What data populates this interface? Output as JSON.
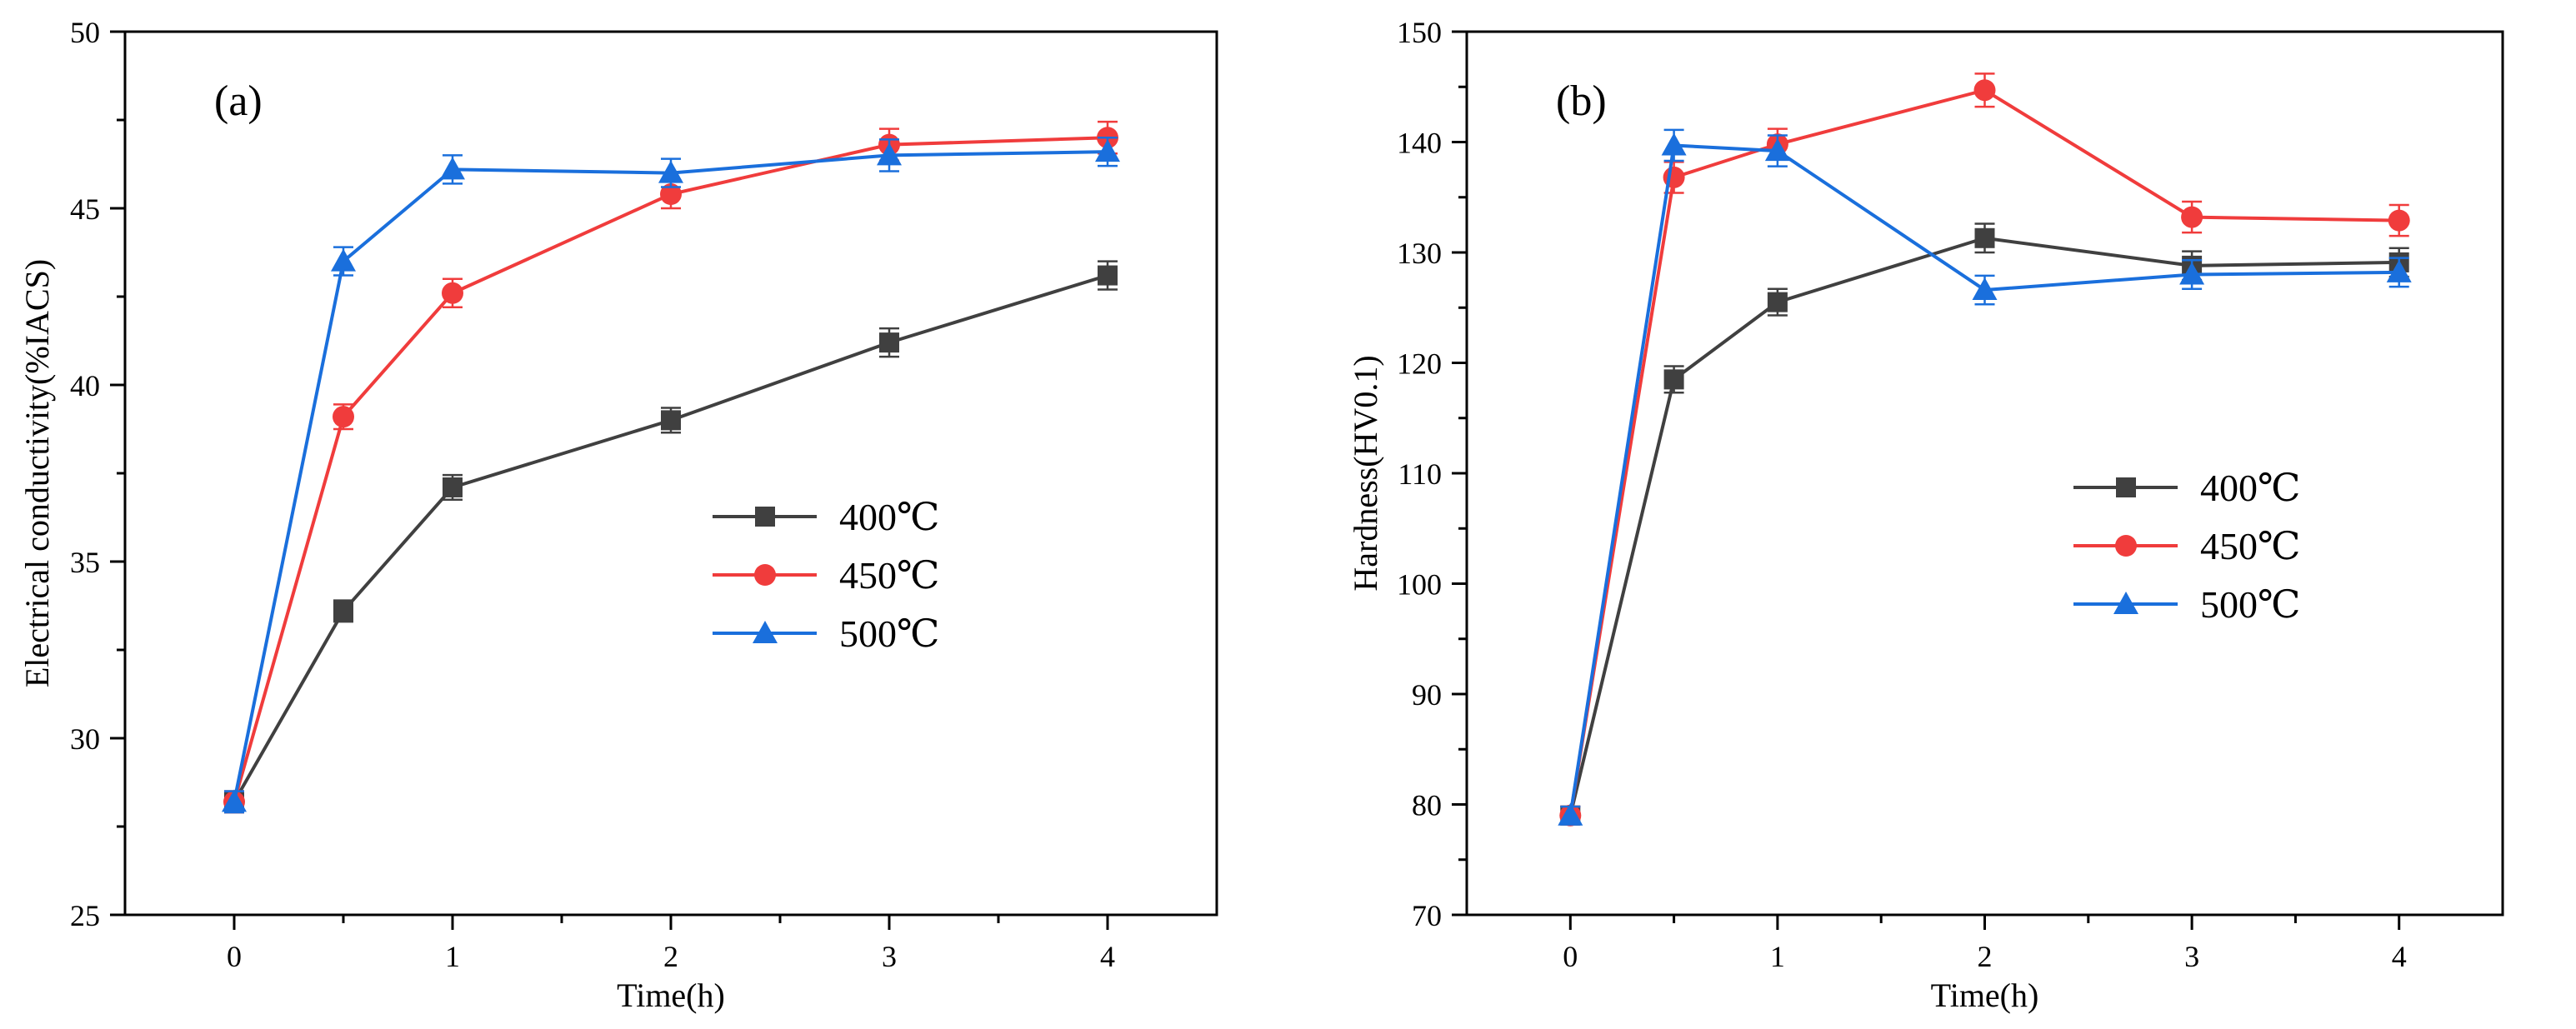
{
  "chart_data": [
    {
      "type": "line",
      "panel_label": "(a)",
      "xlabel": "Time(h)",
      "ylabel": "Electrical conductivity(%IACS)",
      "xlim": [
        -0.5,
        4.5
      ],
      "ylim": [
        25,
        50
      ],
      "x_ticks": [
        0,
        1,
        2,
        3,
        4
      ],
      "x_tick_labels": [
        "0",
        "1",
        "2",
        "3",
        "4"
      ],
      "y_ticks": [
        25,
        30,
        35,
        40,
        45,
        50
      ],
      "y_tick_labels": [
        "25",
        "30",
        "35",
        "40",
        "45",
        "50"
      ],
      "x": [
        0,
        0.5,
        1,
        2,
        3,
        4
      ],
      "grid": false,
      "legend_position": "center-right",
      "series": [
        {
          "name": "400℃",
          "color": "#404040",
          "marker": "square",
          "values": [
            28.2,
            33.6,
            37.1,
            39.0,
            41.2,
            43.1
          ],
          "errors": [
            0.3,
            0.3,
            0.35,
            0.35,
            0.4,
            0.4
          ]
        },
        {
          "name": "450℃",
          "color": "#f03c3c",
          "marker": "circle",
          "values": [
            28.2,
            39.1,
            42.6,
            45.4,
            46.8,
            47.0
          ],
          "errors": [
            0.3,
            0.35,
            0.4,
            0.4,
            0.45,
            0.45
          ]
        },
        {
          "name": "500℃",
          "color": "#1a6fdc",
          "marker": "triangle",
          "values": [
            28.2,
            43.5,
            46.1,
            46.0,
            46.5,
            46.6
          ],
          "errors": [
            0.3,
            0.4,
            0.4,
            0.4,
            0.45,
            0.4
          ]
        }
      ]
    },
    {
      "type": "line",
      "panel_label": "(b)",
      "xlabel": "Time(h)",
      "ylabel": "Hardness(HV0.1)",
      "xlim": [
        -0.5,
        4.5
      ],
      "ylim": [
        70,
        150
      ],
      "x_ticks": [
        0,
        1,
        2,
        3,
        4
      ],
      "x_tick_labels": [
        "0",
        "1",
        "2",
        "3",
        "4"
      ],
      "y_ticks": [
        70,
        80,
        90,
        100,
        110,
        120,
        130,
        140,
        150
      ],
      "y_tick_labels": [
        "70",
        "80",
        "90",
        "100",
        "110",
        "120",
        "130",
        "140",
        "150"
      ],
      "x": [
        0,
        0.5,
        1,
        2,
        3,
        4
      ],
      "grid": false,
      "legend_position": "center-right",
      "series": [
        {
          "name": "400℃",
          "color": "#404040",
          "marker": "square",
          "values": [
            79.0,
            118.5,
            125.5,
            131.3,
            128.8,
            129.1
          ],
          "errors": [
            0.8,
            1.2,
            1.2,
            1.3,
            1.3,
            1.3
          ]
        },
        {
          "name": "450℃",
          "color": "#f03c3c",
          "marker": "circle",
          "values": [
            79.0,
            136.8,
            139.8,
            144.7,
            133.2,
            132.9
          ],
          "errors": [
            0.8,
            1.4,
            1.4,
            1.5,
            1.4,
            1.4
          ]
        },
        {
          "name": "500℃",
          "color": "#1a6fdc",
          "marker": "triangle",
          "values": [
            79.0,
            139.7,
            139.2,
            126.6,
            128.0,
            128.2
          ],
          "errors": [
            0.8,
            1.4,
            1.4,
            1.3,
            1.3,
            1.3
          ]
        }
      ]
    }
  ]
}
